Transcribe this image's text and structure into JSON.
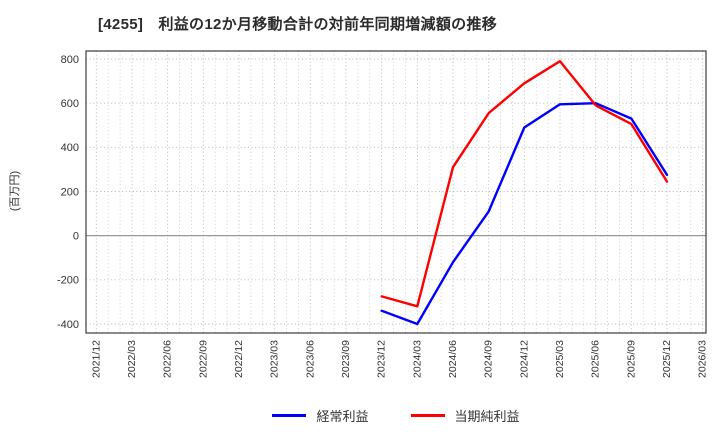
{
  "title": "[4255]　利益の12か月移動合計の対前年同期増減額の推移",
  "y_unit_label": "(百万円)",
  "legend": {
    "items": [
      {
        "label": "経常利益",
        "color": "#0000ff"
      },
      {
        "label": "当期純利益",
        "color": "#ff0000"
      }
    ]
  },
  "chart_data": {
    "type": "line",
    "title": "[4255]　利益の12か月移動合計の対前年同期増減額の推移",
    "xlabel": "",
    "ylabel": "(百万円)",
    "ylim": [
      -400,
      800
    ],
    "yticks": [
      800,
      600,
      400,
      200,
      0,
      -200,
      -400
    ],
    "grid": true,
    "legend_position": "bottom",
    "categories": [
      "2021/12",
      "2022/03",
      "2022/06",
      "2022/09",
      "2022/12",
      "2023/03",
      "2023/06",
      "2023/09",
      "2023/12",
      "2024/03",
      "2024/06",
      "2024/09",
      "2024/12",
      "2025/03",
      "2025/06",
      "2025/09",
      "2025/12",
      "2026/03"
    ],
    "series": [
      {
        "name": "経常利益",
        "color": "#0000ff",
        "values": [
          null,
          null,
          null,
          null,
          null,
          null,
          null,
          null,
          -340,
          -400,
          -120,
          110,
          490,
          595,
          600,
          530,
          275,
          null
        ]
      },
      {
        "name": "当期純利益",
        "color": "#ff0000",
        "values": [
          null,
          null,
          null,
          null,
          null,
          null,
          null,
          null,
          -275,
          -320,
          310,
          555,
          690,
          790,
          590,
          505,
          245,
          null
        ]
      }
    ]
  }
}
